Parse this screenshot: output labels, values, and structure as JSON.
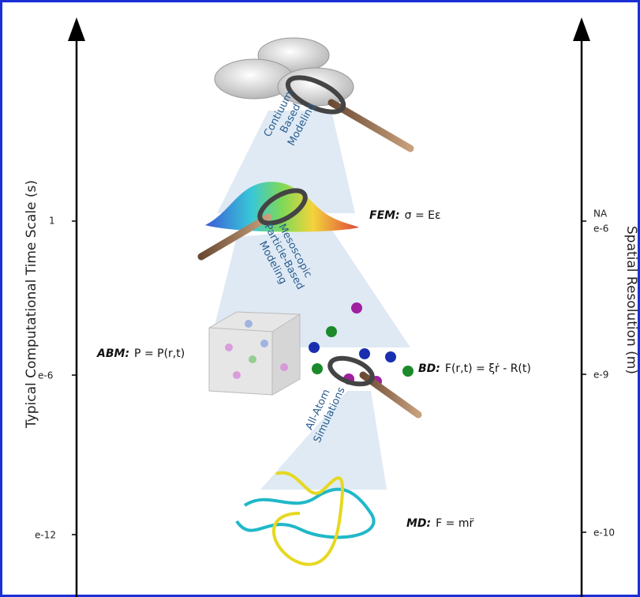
{
  "axes": {
    "left": {
      "label": "Typical Computational Time Scale (s)",
      "ticks": [
        "1",
        "e-6",
        "e-12"
      ]
    },
    "right": {
      "label": "Spatial Resolution (m)",
      "ticks": [
        "NA",
        "e-6",
        "e-9",
        "e-10"
      ]
    }
  },
  "process_labels": [
    {
      "lines": [
        "Contiuum-",
        "Based",
        "Modeling"
      ]
    },
    {
      "lines": [
        "Mesoscopic",
        "Particle-Based",
        "Modeling"
      ]
    },
    {
      "lines": [
        "All-Atom",
        "Simulations"
      ]
    }
  ],
  "models": [
    {
      "name": "FEM:",
      "equation": "σ = Eε"
    },
    {
      "name": "ABM:",
      "equation": "P = P(r,t)"
    },
    {
      "name": "BD:",
      "equation": "F(r,t) = ξṙ - R(t)"
    },
    {
      "name": "MD:",
      "equation": "F = mr̈"
    }
  ]
}
